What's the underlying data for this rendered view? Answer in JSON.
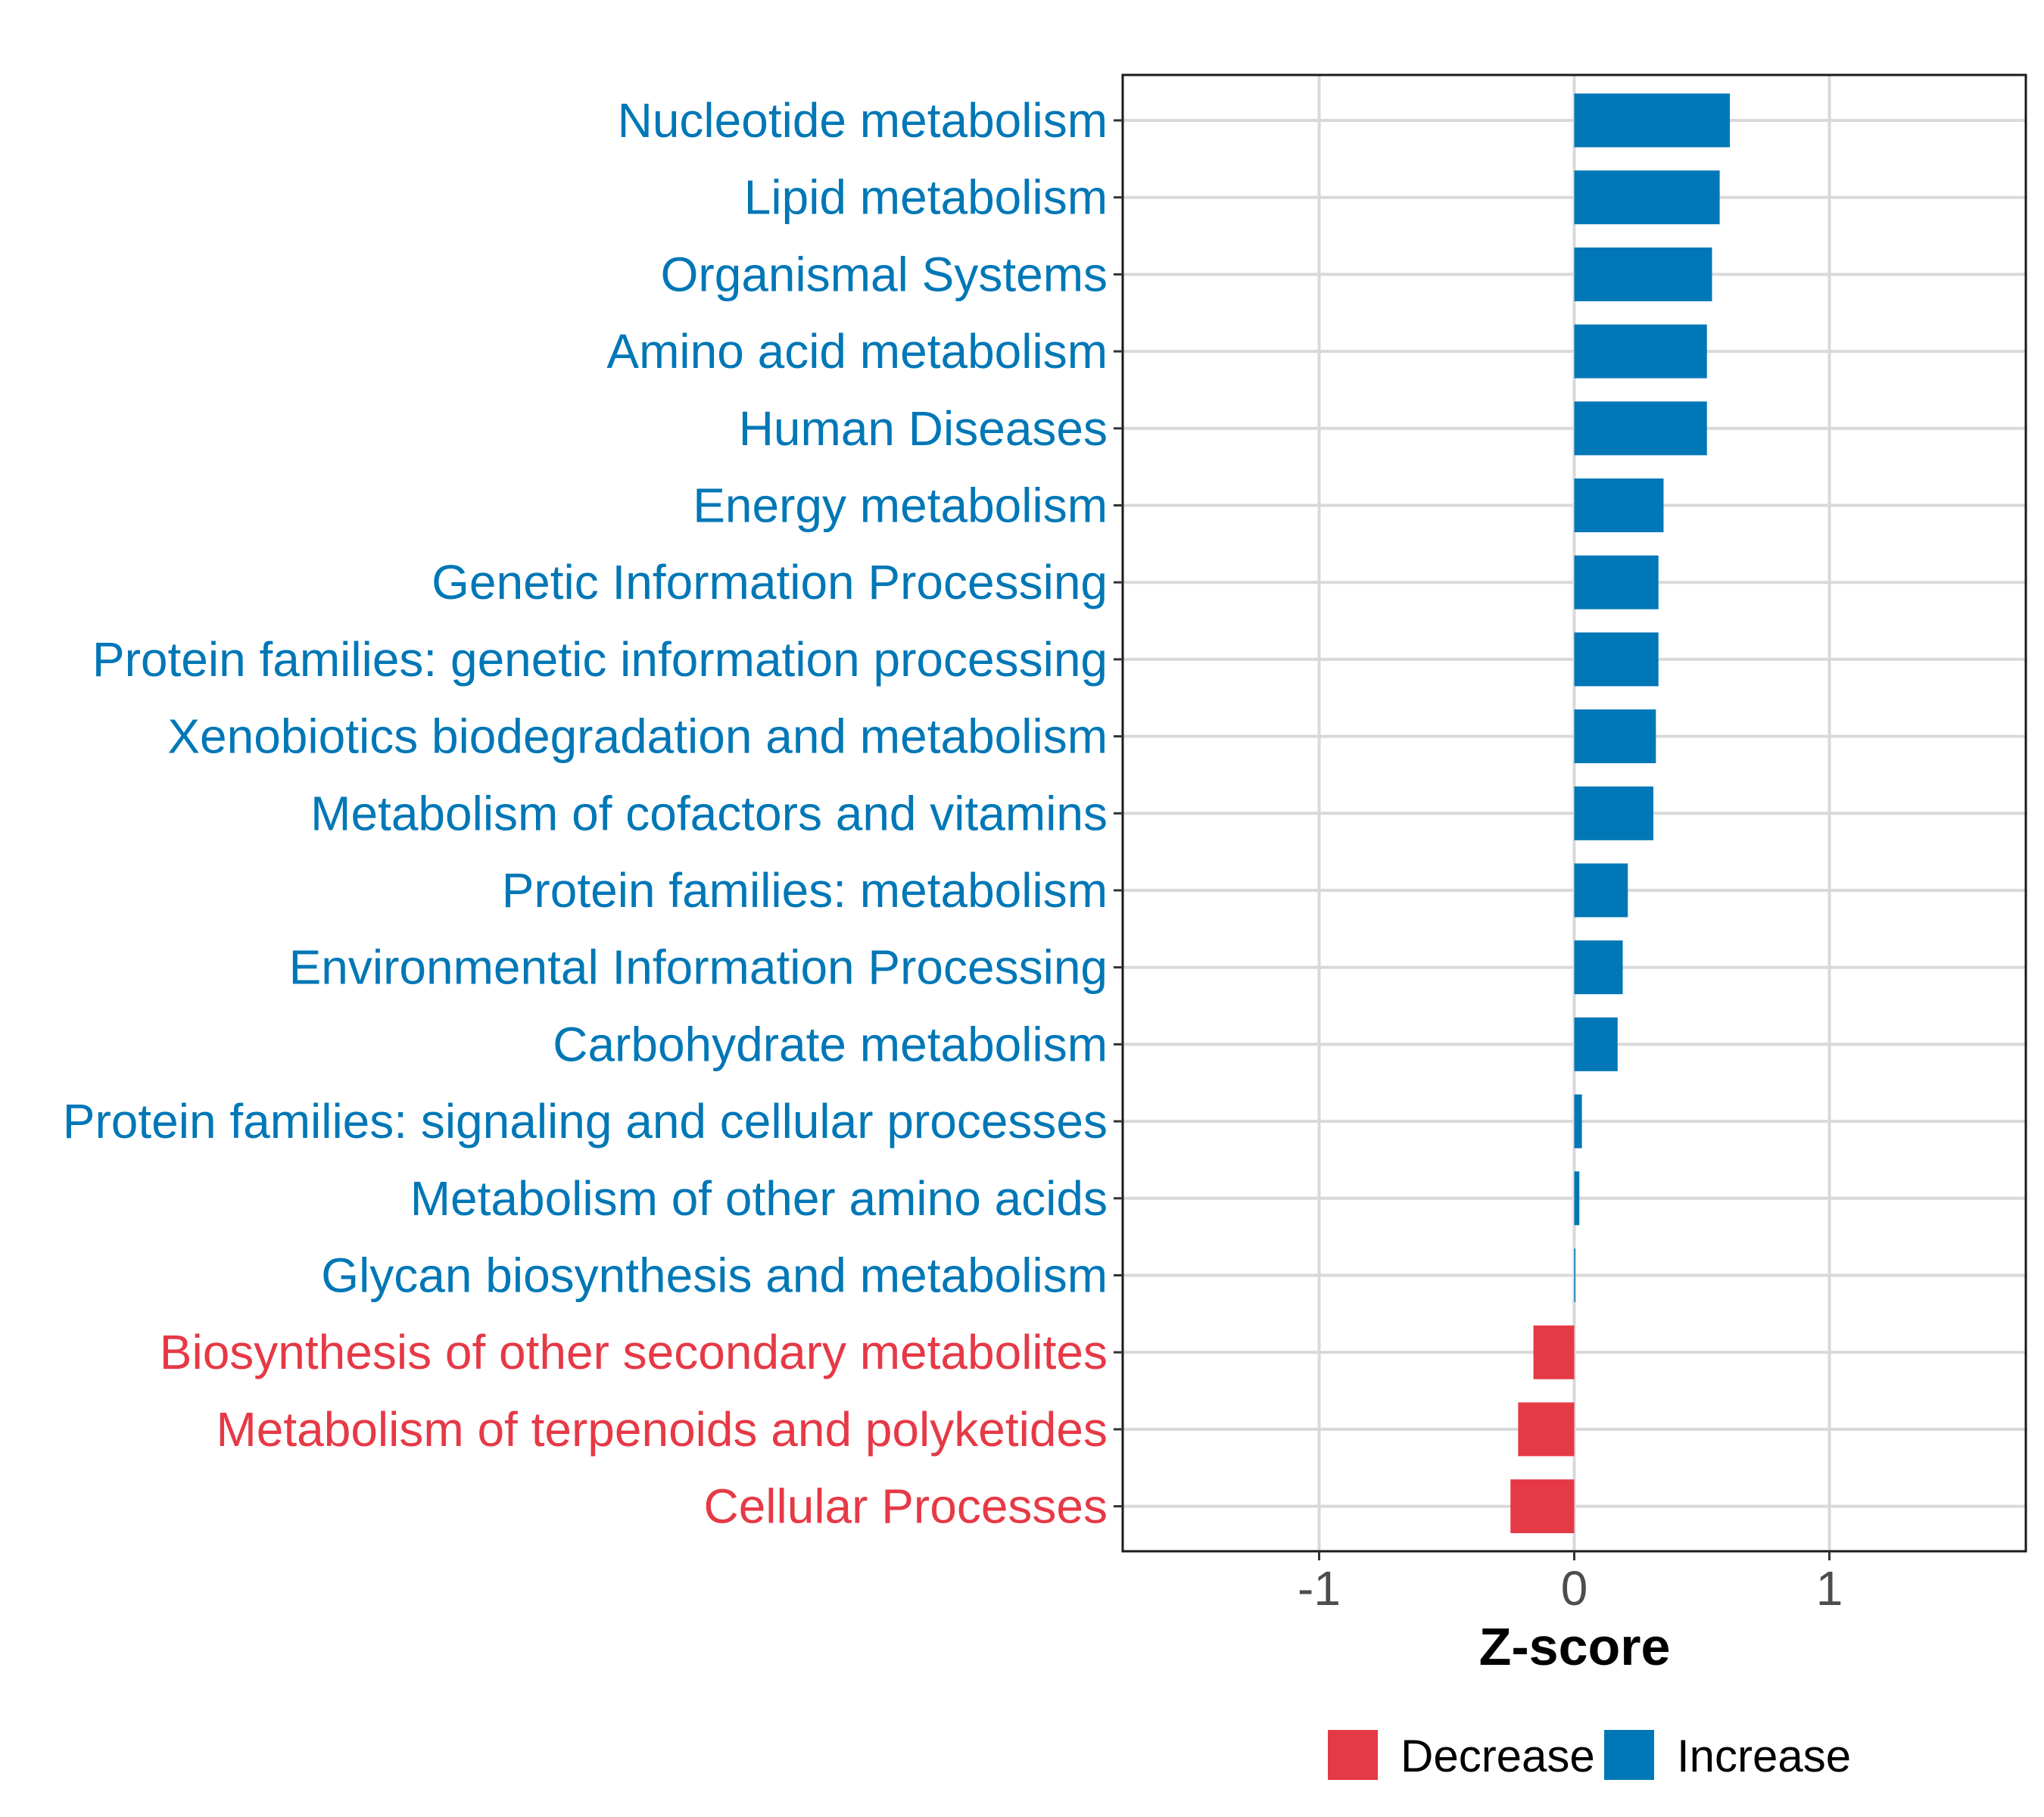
{
  "chart_data": {
    "type": "bar",
    "orientation": "horizontal",
    "title": "",
    "xlabel": "Z-score",
    "ylabel": "",
    "xlim": [
      -1.77,
      1.77
    ],
    "xticks": [
      -1,
      0,
      1
    ],
    "xtick_labels": [
      "-1",
      "0",
      "1"
    ],
    "grid": true,
    "legend_position": "bottom",
    "colors": {
      "Decrease": "#E63946",
      "Increase": "#0077B6"
    },
    "legend": [
      {
        "label": "Decrease",
        "color": "#E63946"
      },
      {
        "label": "Increase",
        "color": "#0077B6"
      }
    ],
    "categories": [
      "Nucleotide metabolism",
      "Lipid metabolism",
      "Organismal Systems",
      "Amino acid metabolism",
      "Human Diseases",
      "Energy metabolism",
      "Genetic Information Processing",
      "Protein families: genetic information processing",
      "Xenobiotics biodegradation and metabolism",
      "Metabolism of cofactors and vitamins",
      "Protein families: metabolism",
      "Environmental Information Processing",
      "Carbohydrate metabolism",
      "Protein families: signaling and cellular processes",
      "Metabolism of other amino acids",
      "Glycan biosynthesis and metabolism",
      "Biosynthesis of other secondary metabolites",
      "Metabolism of terpenoids and polyketides",
      "Cellular Processes"
    ],
    "values": [
      0.61,
      0.57,
      0.54,
      0.52,
      0.52,
      0.35,
      0.33,
      0.33,
      0.32,
      0.31,
      0.21,
      0.19,
      0.17,
      0.03,
      0.02,
      0.003,
      -0.16,
      -0.22,
      -0.25
    ],
    "groups": [
      "Increase",
      "Increase",
      "Increase",
      "Increase",
      "Increase",
      "Increase",
      "Increase",
      "Increase",
      "Increase",
      "Increase",
      "Increase",
      "Increase",
      "Increase",
      "Increase",
      "Increase",
      "Increase",
      "Decrease",
      "Decrease",
      "Decrease"
    ]
  }
}
